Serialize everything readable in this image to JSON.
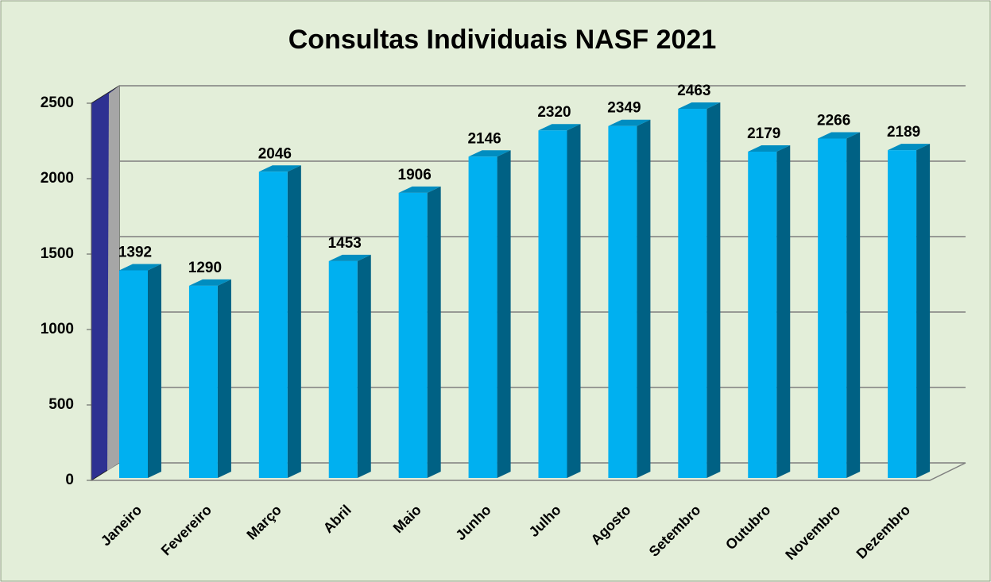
{
  "chart_data": {
    "type": "bar3d",
    "title": "Consultas Individuais NASF 2021",
    "categories": [
      "Janeiro",
      "Fevereiro",
      "Março",
      "Abril",
      "Maio",
      "Junho",
      "Julho",
      "Agosto",
      "Setembro",
      "Outubro",
      "Novembro",
      "Dezembro"
    ],
    "values": [
      1392,
      1290,
      2046,
      1453,
      1906,
      2146,
      2320,
      2349,
      2463,
      2179,
      2266,
      2189
    ],
    "color": "#00b0f0",
    "ylim": [
      0,
      2500
    ],
    "yticks": [
      0,
      500,
      1000,
      1500,
      2000,
      2500
    ],
    "grid": true
  }
}
